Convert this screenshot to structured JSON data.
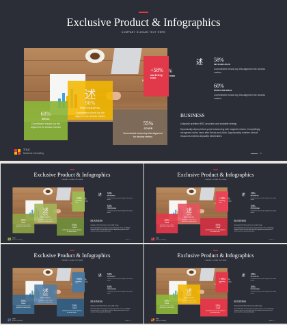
{
  "slide": {
    "title": "Exclusive Product & Infographics",
    "subtitle": "COMPANY SLOGAN TEXT HERE",
    "tiles": {
      "green": {
        "percent": "60%",
        "label": "MEDIA",
        "desc": "Commitment means top this alignment for window metrics"
      },
      "yellow": {
        "icon": "述",
        "percent": "90%",
        "label": "PHOTOGRAPHIC",
        "desc": "Commitment means top this alignment for window metrics"
      },
      "brown": {
        "percent": "55%",
        "label": "COVER",
        "desc": "Commitment means top this alignment for window metrics"
      },
      "red": {
        "percent": "+58%",
        "label": "marketing team",
        "small_title": "BARRIER ONE EVENT",
        "small_sub": "energy red rest",
        "desc": "Commitment means top this alignment for window metrics"
      }
    },
    "stats": [
      {
        "number": "58%",
        "label": "INFOGRAPHIC",
        "text": "Commitment means top this alignment for window metrics"
      },
      {
        "number": "60%",
        "label": "PROFESSIONAL",
        "text": "Commitment means top this alignment for window metrics"
      }
    ],
    "right_icon": "述",
    "business": {
      "heading": "BUSINESS",
      "sub": "Uniquely architect B2C products and scalable energy",
      "body": "Dynamically deploy future-proof outsourcing with magnetic niches. Compellingly reengineer robust users after Bricks-and-clicks. Appropriately redefine vertical resources whereas impactful deliverables"
    },
    "brand": {
      "name": "TITLE",
      "tagline": "Business Consulting"
    },
    "page": "01"
  },
  "themes": [
    {
      "name": "main",
      "tile_a": "#8cb63a",
      "tile_b": "#f2b800",
      "tile_c": "#7d6a58",
      "tile_d": "#e2394a",
      "brand_a": "#e2394a",
      "brand_b": "#f2b800"
    },
    {
      "name": "olive",
      "tile_a": "#8fa244",
      "tile_b": "#a3b85a",
      "tile_c": "#6f8a3a",
      "tile_d": "#9db752",
      "brand_a": "#8fa244",
      "brand_b": "#a3b85a"
    },
    {
      "name": "red",
      "tile_a": "#e2394a",
      "tile_b": "#ea5260",
      "tile_c": "#c93240",
      "tile_d": "#e74555",
      "brand_a": "#e2394a",
      "brand_b": "#ea5260"
    },
    {
      "name": "blue",
      "tile_a": "#3e6a8e",
      "tile_b": "#4f7ea6",
      "tile_c": "#355d80",
      "tile_d": "#4a78a0",
      "brand_a": "#3e6a8e",
      "brand_b": "#4f7ea6"
    },
    {
      "name": "multi",
      "tile_a": "#8cb63a",
      "tile_b": "#f2b800",
      "tile_c": "#e2394a",
      "tile_d": "#e2394a",
      "brand_a": "#e2394a",
      "brand_b": "#f2b800"
    }
  ]
}
